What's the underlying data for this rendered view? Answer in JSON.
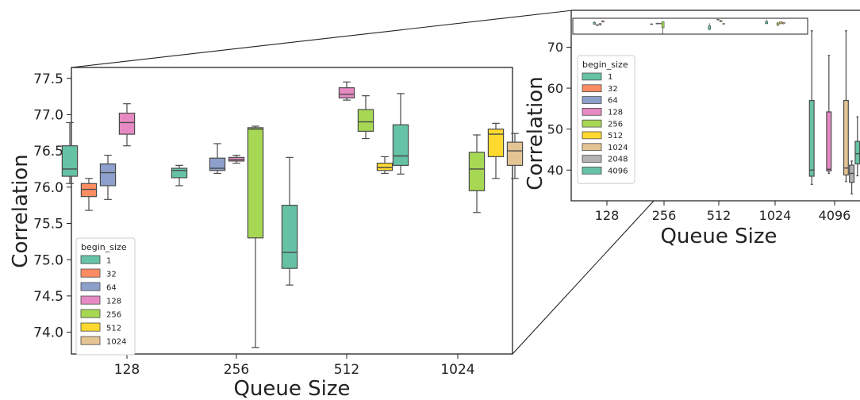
{
  "colors": {
    "1": "#66c2a5",
    "32": "#fc8d62",
    "64": "#8da0cb",
    "128": "#e78ac3",
    "256": "#a6d854",
    "512": "#ffd92f",
    "1024": "#e5c494",
    "2048": "#b3b3b3",
    "4096": "#66c2a5"
  },
  "chart_data": [
    {
      "type": "box",
      "xlabel": "Queue Size",
      "ylabel": "Correlation",
      "ylim": [
        73.7,
        77.65
      ],
      "yticks": [
        "74.0",
        "74.5",
        "75.0",
        "75.5",
        "76.0",
        "76.5",
        "77.0",
        "77.5"
      ],
      "categories": [
        "128",
        "256",
        "512",
        "1024"
      ],
      "legend": {
        "title": "begin_size",
        "placement": "lower-left",
        "entries": [
          "1",
          "32",
          "64",
          "128",
          "256",
          "512",
          "1024"
        ]
      },
      "grid": false,
      "boxes": [
        {
          "category": "128",
          "begin_size": "1",
          "whislo": 76.05,
          "q1": 76.15,
          "med": 76.25,
          "q3": 76.57,
          "whishi": 76.89
        },
        {
          "category": "128",
          "begin_size": "32",
          "whislo": 75.68,
          "q1": 75.87,
          "med": 75.97,
          "q3": 76.05,
          "whishi": 76.12
        },
        {
          "category": "128",
          "begin_size": "64",
          "whislo": 75.83,
          "q1": 76.02,
          "med": 76.2,
          "q3": 76.32,
          "whishi": 76.44
        },
        {
          "category": "128",
          "begin_size": "128",
          "whislo": 76.57,
          "q1": 76.73,
          "med": 76.89,
          "q3": 77.02,
          "whishi": 77.15
        },
        {
          "category": "256",
          "begin_size": "1",
          "whislo": 76.02,
          "q1": 76.13,
          "med": 76.23,
          "q3": 76.26,
          "whishi": 76.3
        },
        {
          "category": "256",
          "begin_size": "64",
          "whislo": 76.19,
          "q1": 76.23,
          "med": 76.26,
          "q3": 76.4,
          "whishi": 76.6
        },
        {
          "category": "256",
          "begin_size": "128",
          "whislo": 76.33,
          "q1": 76.36,
          "med": 76.38,
          "q3": 76.41,
          "whishi": 76.44
        },
        {
          "category": "256",
          "begin_size": "256",
          "whislo": 73.79,
          "q1": 75.3,
          "med": 76.8,
          "q3": 76.82,
          "whishi": 76.84
        },
        {
          "category": "512",
          "begin_size": "1",
          "whislo": 74.65,
          "q1": 74.88,
          "med": 75.1,
          "q3": 75.75,
          "whishi": 76.41
        },
        {
          "category": "512",
          "begin_size": "128",
          "whislo": 77.2,
          "q1": 77.23,
          "med": 77.28,
          "q3": 77.37,
          "whishi": 77.45
        },
        {
          "category": "512",
          "begin_size": "256",
          "whislo": 76.67,
          "q1": 76.77,
          "med": 76.9,
          "q3": 77.07,
          "whishi": 77.26
        },
        {
          "category": "512",
          "begin_size": "512",
          "whislo": 76.19,
          "q1": 76.23,
          "med": 76.27,
          "q3": 76.33,
          "whishi": 76.42
        },
        {
          "category": "1024",
          "begin_size": "1",
          "whislo": 76.18,
          "q1": 76.3,
          "med": 76.43,
          "q3": 76.86,
          "whishi": 77.29
        },
        {
          "category": "1024",
          "begin_size": "256",
          "whislo": 75.65,
          "q1": 75.95,
          "med": 76.25,
          "q3": 76.48,
          "whishi": 76.72
        },
        {
          "category": "1024",
          "begin_size": "512",
          "whislo": 76.12,
          "q1": 76.42,
          "med": 76.73,
          "q3": 76.8,
          "whishi": 76.88
        },
        {
          "category": "1024",
          "begin_size": "1024",
          "whislo": 76.12,
          "q1": 76.3,
          "med": 76.5,
          "q3": 76.62,
          "whishi": 76.74
        }
      ]
    },
    {
      "type": "box",
      "xlabel": "Queue Size",
      "ylabel": "Correlation",
      "ylim": [
        32.5,
        79
      ],
      "yticks": [
        "40",
        "50",
        "60",
        "70"
      ],
      "categories": [
        "128",
        "256",
        "512",
        "1024",
        "4096"
      ],
      "legend": {
        "title": "begin_size",
        "placement": "upper-left",
        "entries": [
          "1",
          "32",
          "64",
          "128",
          "256",
          "512",
          "1024",
          "2048",
          "4096"
        ]
      },
      "grid": false,
      "boxes": [
        {
          "category": "4096",
          "begin_size": "1",
          "whislo": 36.5,
          "q1": 38.5,
          "med": 40,
          "q3": 57,
          "whishi": 74
        },
        {
          "category": "4096",
          "begin_size": "128",
          "whislo": 39.2,
          "q1": 39.8,
          "med": 40.2,
          "q3": 54.2,
          "whishi": 68
        },
        {
          "category": "4096",
          "begin_size": "1024",
          "whislo": 37.2,
          "q1": 38.8,
          "med": 40.5,
          "q3": 57,
          "whishi": 74
        },
        {
          "category": "4096",
          "begin_size": "2048",
          "whislo": 34.2,
          "q1": 37,
          "med": 39.2,
          "q3": 41.2,
          "whishi": 42.2
        },
        {
          "category": "4096",
          "begin_size": "4096",
          "whislo": 38.6,
          "q1": 41.5,
          "med": 44,
          "q3": 47,
          "whishi": 53
        }
      ]
    }
  ]
}
